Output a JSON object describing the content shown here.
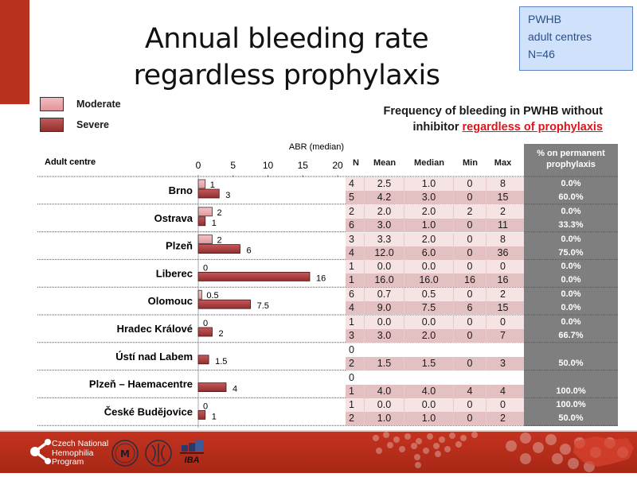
{
  "title": {
    "line1": "Annual bleeding rate",
    "line2": "regardless prophylaxis"
  },
  "info_box": {
    "line1": "PWHB",
    "line2": "adult centres",
    "line3": "N=46"
  },
  "subtitle": {
    "line1": "Frequency of bleeding in PWHB without",
    "line2_prefix": "inhibitor ",
    "line2_highlight": "regardless of prophylaxis"
  },
  "colors": {
    "moderate": "#e8a3a6",
    "severe": "#a63a3c",
    "accent_red": "#e0141a",
    "brand_red": "#b8311e",
    "pct_bg": "#7f7f7f",
    "row_light": "#f6e3e4",
    "row_dark": "#e3c0c2"
  },
  "legend": [
    {
      "label": "Moderate",
      "key": "moderate"
    },
    {
      "label": "Severe",
      "key": "severe"
    }
  ],
  "table": {
    "headers": {
      "centre": "Adult centre",
      "n": "N",
      "mean": "Mean",
      "median": "Median",
      "min": "Min",
      "max": "Max",
      "pct_line1": "% on permanent",
      "pct_line2": "prophylaxis"
    },
    "rows": [
      {
        "centre": "Brno",
        "moderate": {
          "n": "4",
          "mean": "2.5",
          "median": "1.0",
          "min": "0",
          "max": "8",
          "pct": "0.0%"
        },
        "severe": {
          "n": "5",
          "mean": "4.2",
          "median": "3.0",
          "min": "0",
          "max": "15",
          "pct": "60.0%"
        }
      },
      {
        "centre": "Ostrava",
        "moderate": {
          "n": "2",
          "mean": "2.0",
          "median": "2.0",
          "min": "2",
          "max": "2",
          "pct": "0.0%"
        },
        "severe": {
          "n": "6",
          "mean": "3.0",
          "median": "1.0",
          "min": "0",
          "max": "11",
          "pct": "33.3%"
        }
      },
      {
        "centre": "Plzeň",
        "moderate": {
          "n": "3",
          "mean": "3.3",
          "median": "2.0",
          "min": "0",
          "max": "8",
          "pct": "0.0%"
        },
        "severe": {
          "n": "4",
          "mean": "12.0",
          "median": "6.0",
          "min": "0",
          "max": "36",
          "pct": "75.0%"
        }
      },
      {
        "centre": "Liberec",
        "moderate": {
          "n": "1",
          "mean": "0.0",
          "median": "0.0",
          "min": "0",
          "max": "0",
          "pct": "0.0%"
        },
        "severe": {
          "n": "1",
          "mean": "16.0",
          "median": "16.0",
          "min": "16",
          "max": "16",
          "pct": "0.0%"
        }
      },
      {
        "centre": "Olomouc",
        "moderate": {
          "n": "6",
          "mean": "0.7",
          "median": "0.5",
          "min": "0",
          "max": "2",
          "pct": "0.0%"
        },
        "severe": {
          "n": "4",
          "mean": "9.0",
          "median": "7.5",
          "min": "6",
          "max": "15",
          "pct": "0.0%"
        }
      },
      {
        "centre": "Hradec Králové",
        "moderate": {
          "n": "1",
          "mean": "0.0",
          "median": "0.0",
          "min": "0",
          "max": "0",
          "pct": "0.0%"
        },
        "severe": {
          "n": "3",
          "mean": "3.0",
          "median": "2.0",
          "min": "0",
          "max": "7",
          "pct": "66.7%"
        }
      },
      {
        "centre": "Ústí nad Labem",
        "moderate": {
          "n": "0",
          "mean": "",
          "median": "",
          "min": "",
          "max": "",
          "pct": ""
        },
        "severe": {
          "n": "2",
          "mean": "1.5",
          "median": "1.5",
          "min": "0",
          "max": "3",
          "pct": "50.0%"
        }
      },
      {
        "centre": "Plzeň – Haemacentre",
        "moderate": {
          "n": "0",
          "mean": "",
          "median": "",
          "min": "",
          "max": "",
          "pct": ""
        },
        "severe": {
          "n": "1",
          "mean": "4.0",
          "median": "4.0",
          "min": "4",
          "max": "4",
          "pct": "100.0%"
        }
      },
      {
        "centre": "České Budějovice",
        "moderate": {
          "n": "1",
          "mean": "0.0",
          "median": "0.0",
          "min": "0",
          "max": "0",
          "pct": "100.0%"
        },
        "severe": {
          "n": "2",
          "mean": "1.0",
          "median": "1.0",
          "min": "0",
          "max": "2",
          "pct": "50.0%"
        }
      }
    ]
  },
  "chart_data": {
    "type": "bar",
    "orientation": "horizontal",
    "title": "ABR (median)",
    "xlabel": "ABR (median)",
    "ylabel": "Adult centre",
    "xlim": [
      0,
      20
    ],
    "xticks": [
      0,
      5,
      10,
      15,
      20
    ],
    "categories": [
      "Brno",
      "Ostrava",
      "Plzeň",
      "Liberec",
      "Olomouc",
      "Hradec Králové",
      "Ústí nad Labem",
      "Plzeň – Haemacentre",
      "České Budějovice"
    ],
    "series": [
      {
        "name": "Moderate",
        "values": [
          1,
          2,
          2,
          0,
          0.5,
          0,
          null,
          null,
          0
        ],
        "labels": [
          "1",
          "2",
          "2",
          "0",
          "0.5",
          "0",
          "",
          "",
          "0"
        ]
      },
      {
        "name": "Severe",
        "values": [
          3,
          1,
          6,
          16,
          7.5,
          2,
          1.5,
          4,
          1
        ],
        "labels": [
          "3",
          "1",
          "6",
          "16",
          "7.5",
          "2",
          "1.5",
          "4",
          "1"
        ]
      }
    ],
    "legend_position": "top-left"
  },
  "footer": {
    "org_line1": "Czech National",
    "org_line2": "Hemophilia",
    "org_line3": "Program",
    "logo3_text": "IBA"
  }
}
